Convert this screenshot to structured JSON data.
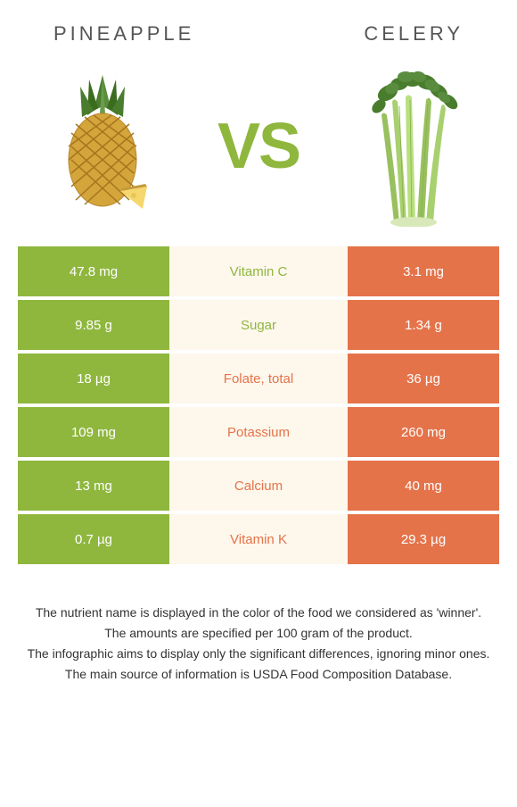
{
  "header": {
    "leftTitle": "PINEAPPLE",
    "rightTitle": "CELERY"
  },
  "vs": "VS",
  "colors": {
    "green": "#8fb73e",
    "orange": "#e5734a",
    "centerBg": "#fdf7ec",
    "textDark": "#333333"
  },
  "nutrients": [
    {
      "left": "47.8 mg",
      "label": "Vitamin C",
      "right": "3.1 mg",
      "winner": "green"
    },
    {
      "left": "9.85 g",
      "label": "Sugar",
      "right": "1.34 g",
      "winner": "green"
    },
    {
      "left": "18 µg",
      "label": "Folate, total",
      "right": "36 µg",
      "winner": "orange"
    },
    {
      "left": "109 mg",
      "label": "Potassium",
      "right": "260 mg",
      "winner": "orange"
    },
    {
      "left": "13 mg",
      "label": "Calcium",
      "right": "40 mg",
      "winner": "orange"
    },
    {
      "left": "0.7 µg",
      "label": "Vitamin K",
      "right": "29.3 µg",
      "winner": "orange"
    }
  ],
  "footer": {
    "line1": "The nutrient name is displayed in the color of the food we considered as 'winner'.",
    "line2": "The amounts are specified per 100 gram of the product.",
    "line3": "The infographic aims to display only the significant differences, ignoring minor ones.",
    "line4": "The main source of information is USDA Food Composition Database."
  }
}
